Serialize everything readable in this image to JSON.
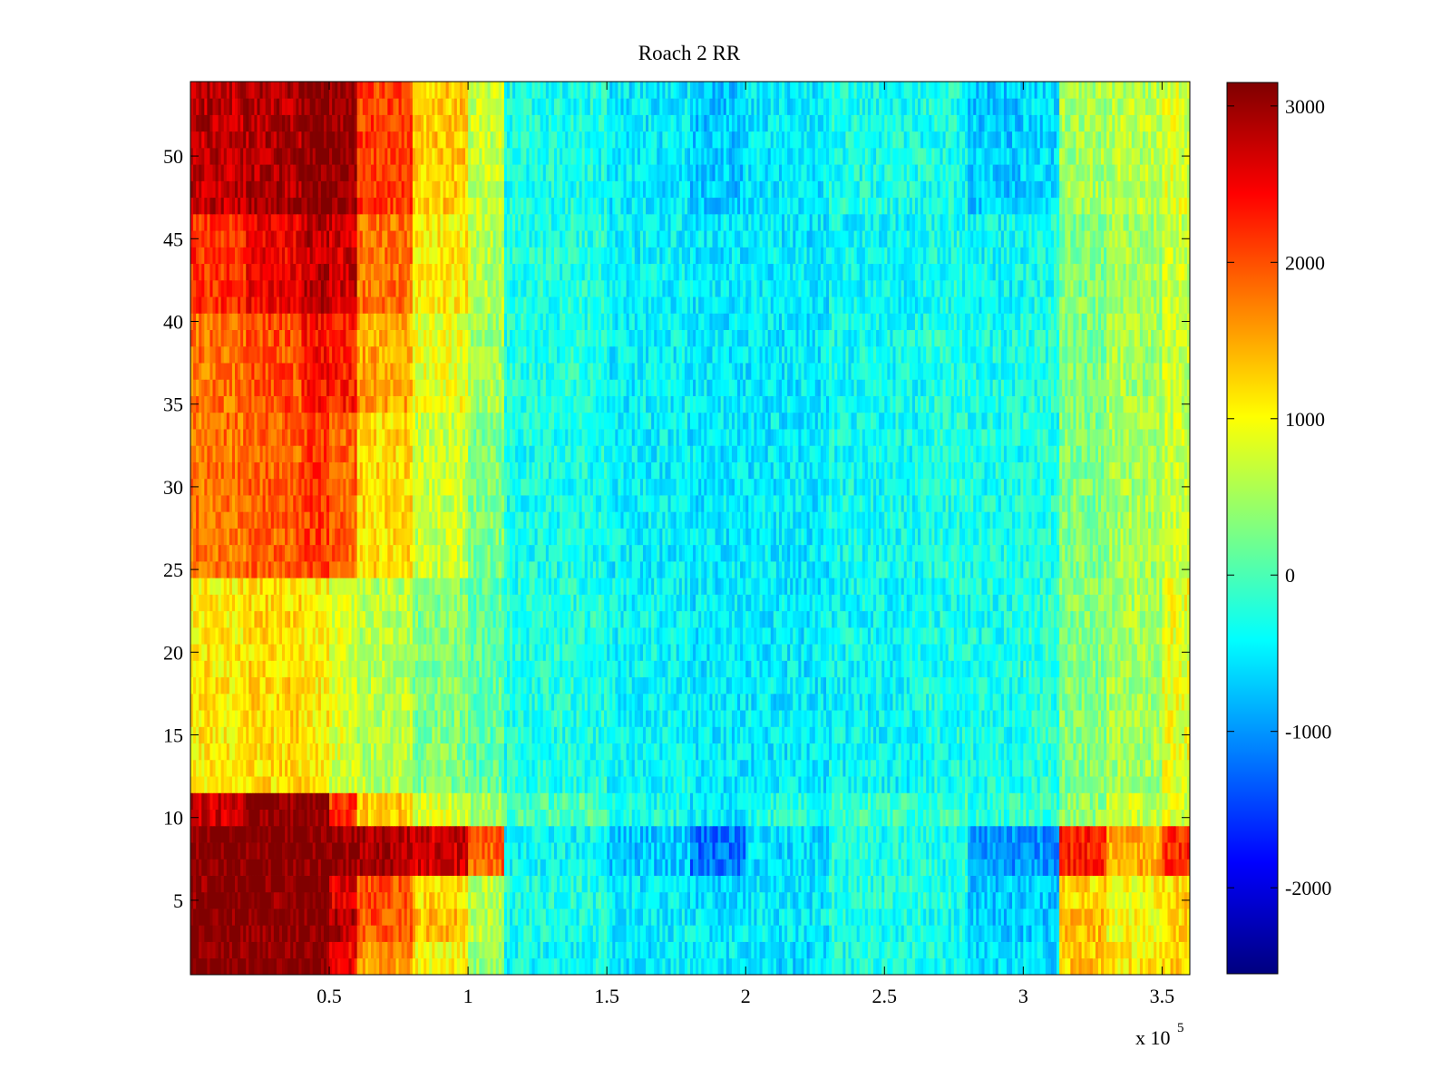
{
  "chart_data": {
    "type": "heatmap",
    "title": "Roach 2 RR",
    "xlabel": "",
    "ylabel": "",
    "x_multiplier_label": "x 10",
    "x_multiplier_exponent": "5",
    "xlim": [
      0,
      360000
    ],
    "ylim": [
      0.5,
      54.5
    ],
    "x_ticks": [
      50000,
      100000,
      150000,
      200000,
      250000,
      300000,
      350000
    ],
    "x_tick_labels": [
      "0.5",
      "1",
      "1.5",
      "2",
      "2.5",
      "3",
      "3.5"
    ],
    "y_ticks": [
      5,
      10,
      15,
      20,
      25,
      30,
      35,
      40,
      45,
      50
    ],
    "y_tick_labels": [
      "5",
      "10",
      "15",
      "20",
      "25",
      "30",
      "35",
      "40",
      "45",
      "50"
    ],
    "colormap": "jet",
    "clim": [
      -2550,
      3150
    ],
    "colorbar_ticks": [
      3000,
      2000,
      1000,
      0,
      -1000,
      -2000
    ],
    "colorbar_tick_labels": [
      "3000",
      "2000",
      "1000",
      "0",
      "-1000",
      "-2000"
    ],
    "rows": 54,
    "x_columns": 360,
    "row_group_values": [
      {
        "rows": [
          1,
          2
        ],
        "values": [
          3150,
          3150,
          3150,
          2500,
          1600,
          1000,
          400,
          -350,
          -500,
          -500,
          -600,
          -300,
          -300,
          -600,
          -600,
          1300,
          1100,
          1300
        ]
      },
      {
        "rows": [
          3,
          4
        ],
        "values": [
          3150,
          3150,
          3150,
          2900,
          2000,
          1400,
          600,
          -300,
          -450,
          -500,
          -500,
          -300,
          -350,
          -700,
          -700,
          1400,
          1000,
          1200
        ]
      },
      {
        "rows": [
          5,
          6
        ],
        "values": [
          3100,
          3150,
          3150,
          2600,
          2000,
          1200,
          600,
          -250,
          -500,
          -600,
          -500,
          -250,
          -250,
          -700,
          -700,
          1200,
          1000,
          1200
        ]
      },
      {
        "rows": [
          7,
          8,
          9
        ],
        "values": [
          3150,
          3150,
          3150,
          3050,
          2900,
          2700,
          1900,
          -400,
          -700,
          -1200,
          -600,
          -300,
          -300,
          -1000,
          -1000,
          2300,
          1500,
          2200
        ]
      },
      {
        "rows": [
          10,
          11
        ],
        "values": [
          2700,
          3100,
          3150,
          2100,
          1300,
          800,
          500,
          0,
          -300,
          -500,
          -250,
          -100,
          -100,
          -200,
          -100,
          400,
          700,
          800
        ]
      },
      {
        "rows": [
          12,
          13,
          14,
          15,
          16,
          17,
          18,
          19,
          20,
          21,
          22,
          23,
          24
        ],
        "values": [
          1100,
          1200,
          1100,
          800,
          600,
          300,
          100,
          -250,
          -400,
          -500,
          -500,
          -400,
          -300,
          -300,
          -200,
          300,
          500,
          900
        ]
      },
      {
        "rows": [
          25,
          26,
          27,
          28,
          29,
          30,
          31,
          32,
          33,
          34
        ],
        "values": [
          1800,
          1900,
          2100,
          1900,
          1200,
          700,
          300,
          -300,
          -450,
          -500,
          -500,
          -350,
          -250,
          -300,
          -250,
          300,
          500,
          700
        ]
      },
      {
        "rows": [
          35,
          36,
          37,
          38,
          39,
          40
        ],
        "values": [
          1800,
          2000,
          2400,
          2300,
          1500,
          900,
          500,
          -250,
          -450,
          -500,
          -500,
          -350,
          -250,
          -300,
          -250,
          300,
          500,
          700
        ]
      },
      {
        "rows": [
          41,
          42,
          43,
          44,
          45,
          46
        ],
        "values": [
          2200,
          2500,
          2800,
          2700,
          1800,
          1100,
          600,
          -250,
          -450,
          -500,
          -500,
          -400,
          -300,
          -400,
          -300,
          300,
          500,
          700
        ]
      },
      {
        "rows": [
          47,
          48,
          49,
          50,
          51,
          52,
          53,
          54
        ],
        "values": [
          2800,
          2900,
          3150,
          3050,
          2100,
          1300,
          700,
          -300,
          -500,
          -700,
          -500,
          -300,
          -300,
          -700,
          -600,
          500,
          600,
          800
        ]
      }
    ],
    "row_group_x_bins": [
      0,
      20000,
      40000,
      50000,
      60000,
      80000,
      100000,
      113000,
      150000,
      180000,
      200000,
      230000,
      264000,
      280000,
      300000,
      313000,
      330000,
      350000,
      360000
    ]
  }
}
